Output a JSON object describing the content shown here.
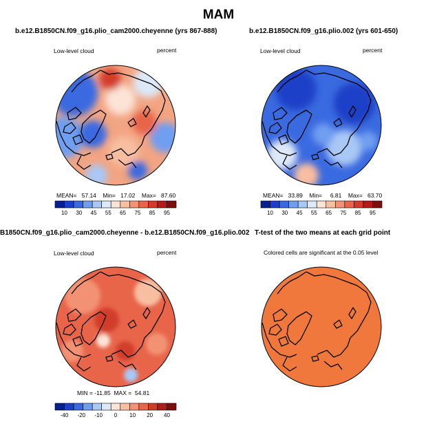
{
  "figure_title": "MAM",
  "panels": [
    {
      "title": "b.e12.B1850CN.f09_g16.plio_cam2000.cheyenne (yrs 867-888)",
      "variable": "Low-level cloud",
      "units": "percent",
      "stats": {
        "mean_label": "MEAN=",
        "mean": "57.14",
        "min_label": "Min=",
        "min": "17.02",
        "max_label": "Max=",
        "max": "87.60"
      },
      "colorbar": {
        "ticks": [
          "10",
          "30",
          "45",
          "55",
          "65",
          "75",
          "85",
          "95"
        ]
      }
    },
    {
      "title": "b.e12.B1850CN.f09_g16.plio.002 (yrs 601-650)",
      "variable": "Low-level cloud",
      "units": "percent",
      "stats": {
        "mean_label": "MEAN=",
        "mean": "33.89",
        "min_label": "Min=",
        "min": "6.81",
        "max_label": "Max=",
        "max": "63.70"
      },
      "colorbar": {
        "ticks": [
          "10",
          "30",
          "45",
          "55",
          "65",
          "75",
          "85",
          "95"
        ]
      }
    },
    {
      "title": "B1850CN.f09_g16.plio_cam2000.cheyenne - b.e12.B1850CN.f09_g16.plio.002",
      "variable": "Low-level cloud",
      "units": "percent",
      "stats_text": "MIN = -11.85  MAX =  54.81",
      "colorbar": {
        "ticks": [
          "-40",
          "-20",
          "-10",
          "0",
          "10",
          "20",
          "40"
        ]
      }
    },
    {
      "title": "T-test of the two means at each grid point",
      "subtitle": "Colored cells are significant at the 0.05 level"
    }
  ],
  "colors": {
    "abs_scale": [
      "#0a1f8f",
      "#1c3fc7",
      "#3a6ae0",
      "#6f9ef0",
      "#a9c8f5",
      "#dde8f8",
      "#fbe3d6",
      "#f8bea0",
      "#f29272",
      "#e8654a",
      "#d23c2a",
      "#b01d17",
      "#7e0e0e"
    ],
    "diff_scale": [
      "#0a1f8f",
      "#1c3fc7",
      "#3a6ae0",
      "#6f9ef0",
      "#a9c8f5",
      "#dde8f8",
      "#fbe3d6",
      "#f8bea0",
      "#f29272",
      "#e8654a",
      "#d23c2a",
      "#b01d17",
      "#7e0e0e"
    ],
    "significance_fill": "#f0783c"
  }
}
